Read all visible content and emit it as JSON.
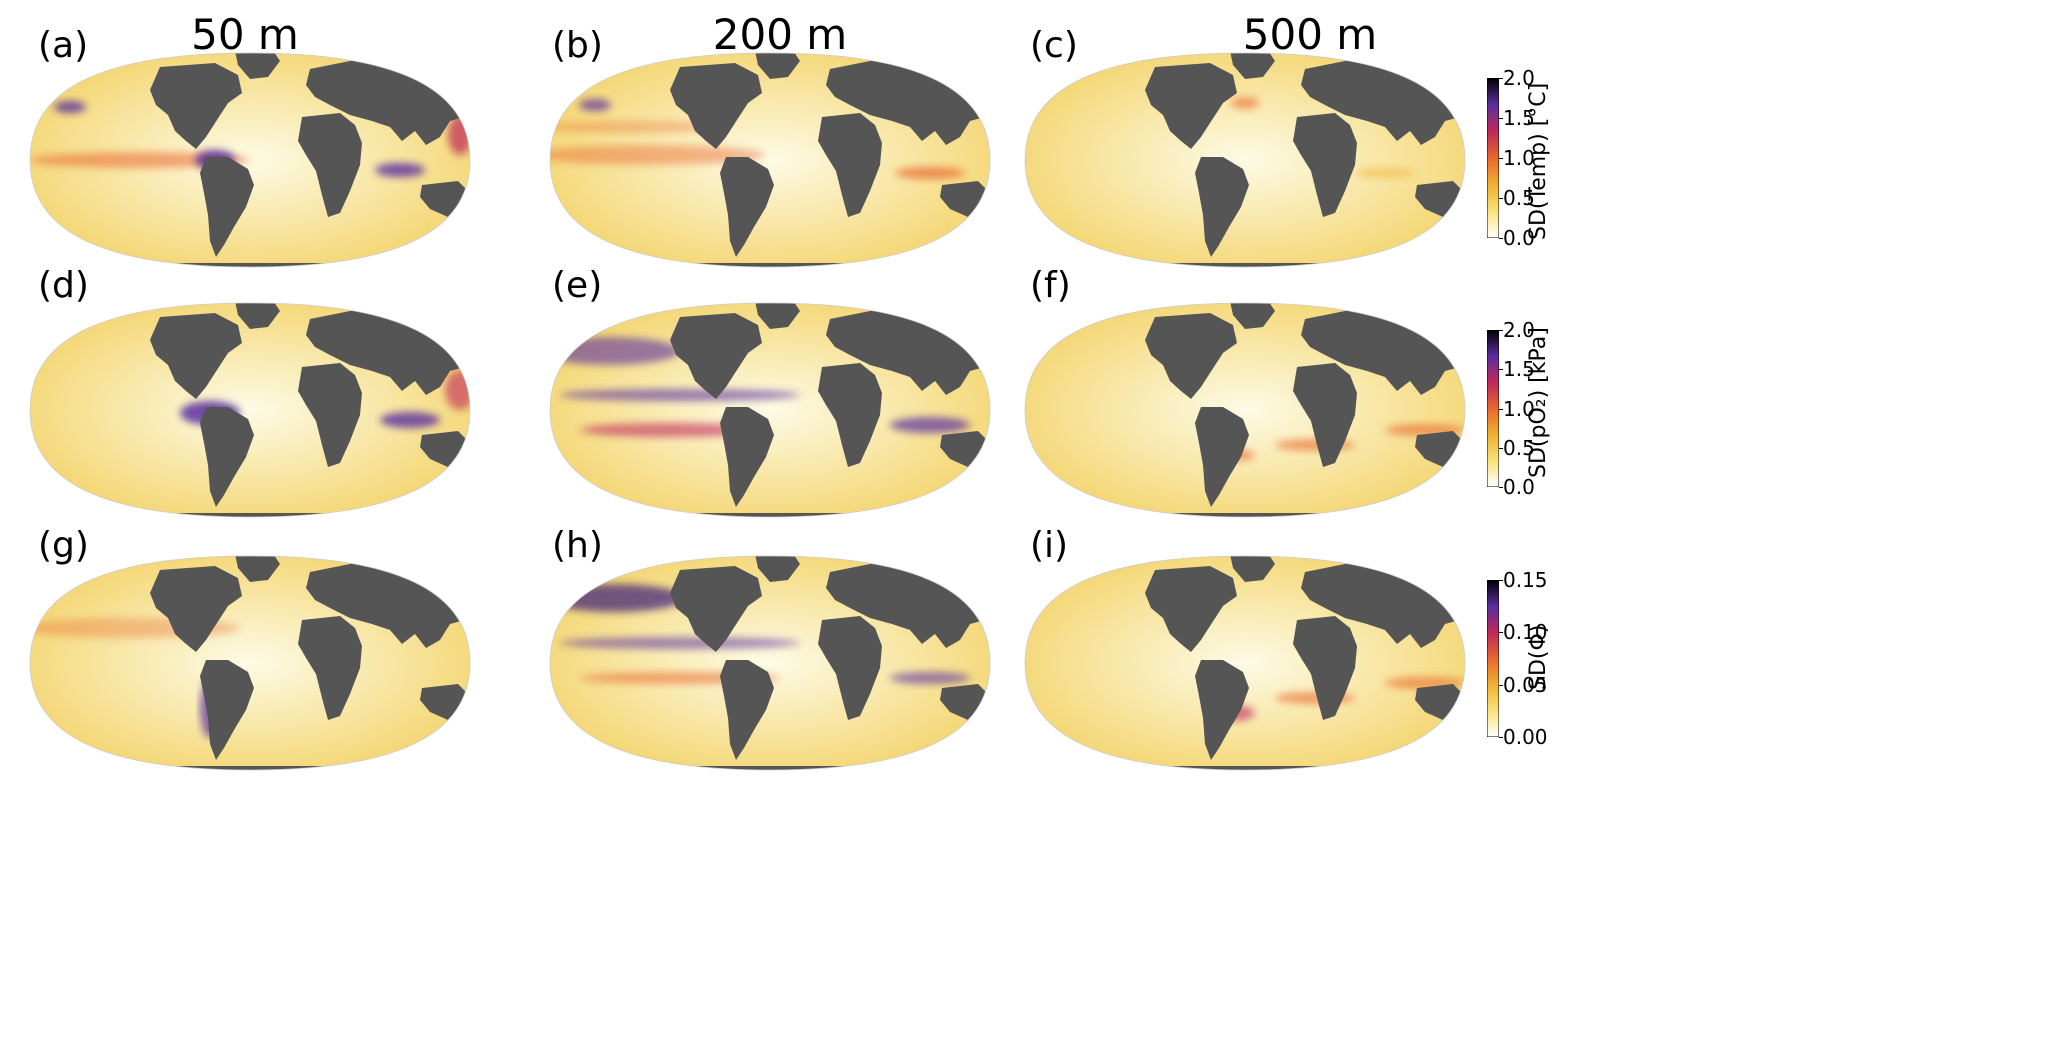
{
  "columns": [
    "50 m",
    "200 m",
    "500 m"
  ],
  "panels": [
    {
      "label": "(a)",
      "variable": "temp",
      "depth": "50 m"
    },
    {
      "label": "(b)",
      "variable": "temp",
      "depth": "200 m"
    },
    {
      "label": "(c)",
      "variable": "temp",
      "depth": "500 m"
    },
    {
      "label": "(d)",
      "variable": "po2",
      "depth": "50 m"
    },
    {
      "label": "(e)",
      "variable": "po2",
      "depth": "200 m"
    },
    {
      "label": "(f)",
      "variable": "po2",
      "depth": "500 m"
    },
    {
      "label": "(g)",
      "variable": "phi",
      "depth": "50 m"
    },
    {
      "label": "(h)",
      "variable": "phi",
      "depth": "200 m"
    },
    {
      "label": "(i)",
      "variable": "phi",
      "depth": "500 m"
    }
  ],
  "colorbars": [
    {
      "label": "SD(Temp) [°C]",
      "range": [
        0.0,
        2.0
      ],
      "ticks": [
        "0.0",
        "0.5",
        "1.0",
        "1.5",
        "2.0"
      ]
    },
    {
      "label": "SD(pO₂) [kPa]",
      "range": [
        0.0,
        2.0
      ],
      "ticks": [
        "0.0",
        "0.5",
        "1.0",
        "1.5",
        "2.0"
      ]
    },
    {
      "label": "SD(Φ)",
      "range": [
        0.0,
        0.15
      ],
      "ticks": [
        "0.00",
        "0.05",
        "0.10",
        "0.15"
      ]
    }
  ],
  "colors": {
    "land": "#555555",
    "ocean_low": "#fdfbe6",
    "ocean_mid": "#f2cf5e",
    "ocean_high": "#e8672e",
    "extreme": "#3a1d7a"
  },
  "colormap_stops": [
    "#ffffff",
    "#f7e27a",
    "#f0b030",
    "#e8672e",
    "#c0275a",
    "#5a2ea0",
    "#000000"
  ]
}
